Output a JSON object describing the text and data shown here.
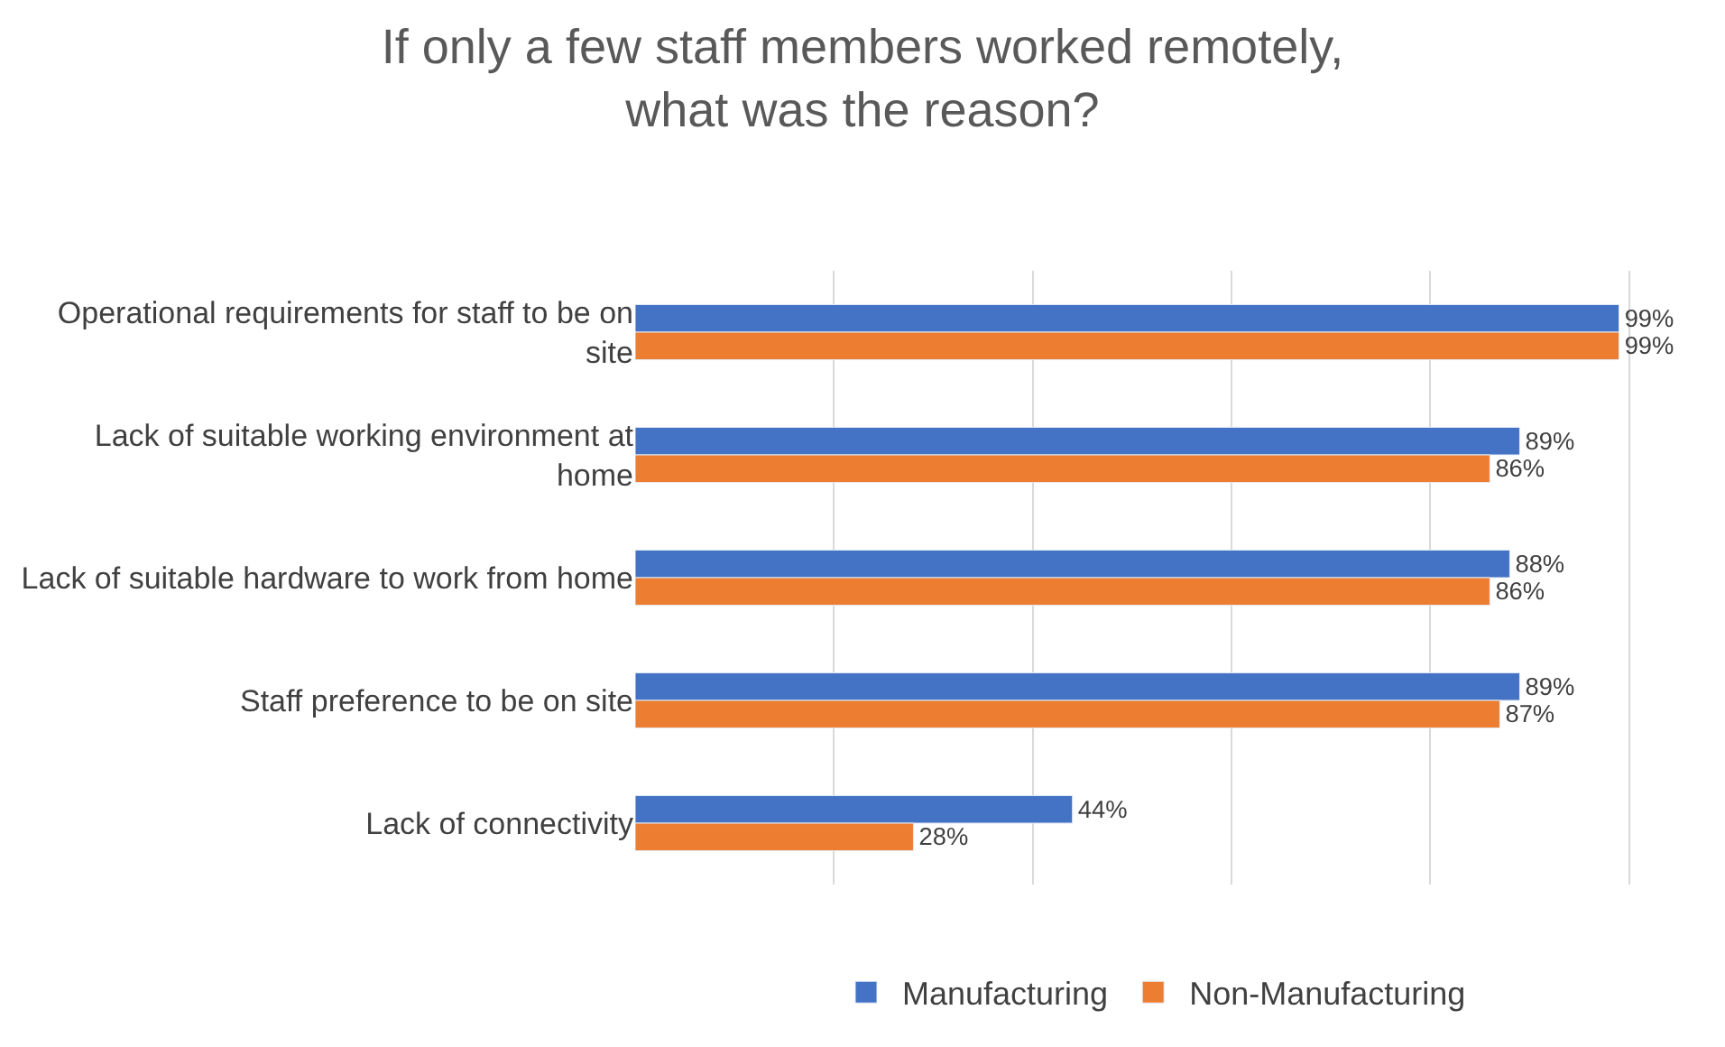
{
  "chart_data": {
    "type": "bar",
    "orientation": "horizontal",
    "title": "If only a few staff members worked remotely, what was the reason?",
    "categories": [
      "Operational requirements for staff to be on site",
      "Lack of suitable working environment at home",
      "Lack of suitable hardware to work from home",
      "Staff preference to be on site",
      "Lack of connectivity"
    ],
    "series": [
      {
        "name": "Manufacturing",
        "color": "#4472c4",
        "values": [
          99,
          89,
          88,
          89,
          44
        ],
        "value_labels": [
          "99%",
          "89%",
          "88%",
          "89%",
          "44%"
        ]
      },
      {
        "name": "Non-Manufacturing",
        "color": "#ed7d31",
        "values": [
          99,
          86,
          86,
          87,
          28
        ],
        "value_labels": [
          "99%",
          "86%",
          "86%",
          "87%",
          "28%"
        ]
      }
    ],
    "tick_labels": "y",
    "grid": "x",
    "legend": "bottom"
  }
}
